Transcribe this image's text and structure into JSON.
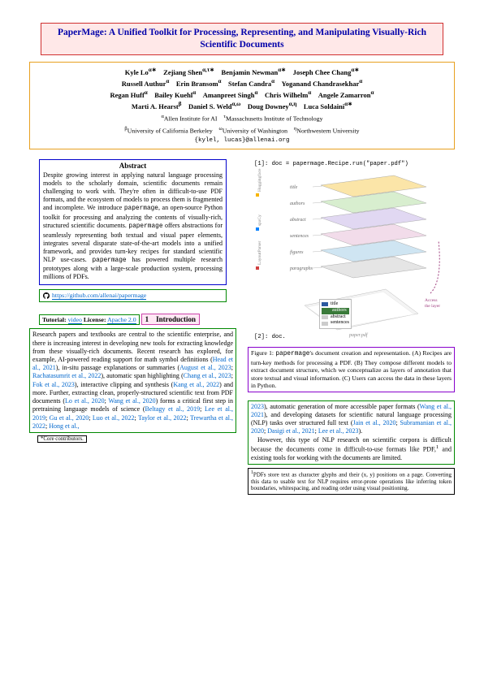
{
  "title": "PaperMage: A Unified Toolkit for Processing, Representing, and Manipulating Visually-Rich Scientific Documents",
  "authors": {
    "line1": "Kyle Lo<sup>α∗</sup> Zejiang Shen<sup>α,τ∗</sup> Benjamin Newman<sup>α∗</sup> Joseph Chee Chang<sup>α∗</sup>",
    "line2": "Russell Authur<sup>α</sup> Erin Bransom<sup>α</sup> Stefan Candra<sup>α</sup> Yoganand Chandrasekhar<sup>α</sup>",
    "line3": "Regan Huff<sup>α</sup> Bailey Kuehl<sup>α</sup> Amanpreet Singh<sup>α</sup> Chris Wilhelm<sup>α</sup> Angele Zamarron<sup>α</sup>",
    "line4": "Marti A. Hearst<sup>β</sup> Daniel S. Weld<sup>α,ω</sup> Doug Downey<sup>α,η</sup> Luca Soldaini<sup>α∗</sup>",
    "affil1": "<sup>α</sup>Allen Institute for AI <sup>τ</sup>Massachusetts Institute of Technology",
    "affil2": "<sup>β</sup>University of California Berkeley <sup>ω</sup>University of Washington <sup>η</sup>Northwestern University",
    "email": "{kylel, lucas}@allenai.org"
  },
  "abstract": {
    "heading": "Abstract",
    "text": "Despite growing interest in applying natural language processing models to the scholarly domain, scientific documents remain challenging to work with. They're often in difficult-to-use PDF formats, and the ecosystem of models to process them is fragmented and incomplete. We introduce <span class=\"mono\">papermage</span>, an open-source Python toolkit for processing and analyzing the contents of visually-rich, structured scientific documents. <span class=\"mono\">papermage</span> offers abstractions for seamlessly representing both textual and visual paper elements, integrates several disparate state-of-the-art models into a unified framework, and provides turn-key recipes for standard scientific NLP use-cases. <span class=\"mono\">papermage</span> has powered multiple research prototypes along with a large-scale production system, processing millions of PDFs."
  },
  "links": {
    "github_url": "https://github.com/allenai/papermage",
    "tutorial_label": "Tutorial:",
    "tutorial_link": "video",
    "license_label": "License:",
    "license_link": "Apache 2.0"
  },
  "section1": {
    "heading": "1 Introduction",
    "para1": "Research papers and textbooks are central to the scientific enterprise, and there is increasing interest in developing new tools for extracting knowledge from these visually-rich documents. Recent research has explored, for example, AI-powered reading support for math symbol definitions (<span class=\"cite\">Head et al., 2021</span>), in-situ passage explanations or summaries (<span class=\"cite\">August et al., 2023</span>; <span class=\"cite\">Rachatasumrit et al., 2022</span>), automatic span highlighting (<span class=\"cite\">Chang et al., 2023</span>; <span class=\"cite\">Fok et al., 2023</span>), interactive clipping and synthesis (<span class=\"cite\">Kang et al., 2022</span>) and more. Further, extracting clean, properly-structured scientific text from PDF documents (<span class=\"cite\">Lo et al., 2020</span>; <span class=\"cite\">Wang et al., 2020</span>) forms a critical first step in pretraining language models of science (<span class=\"cite\">Beltagy et al., 2019</span>; <span class=\"cite\">Lee et al., 2019</span>; <span class=\"cite\">Gu et al., 2020</span>; <span class=\"cite\">Luo et al., 2022</span>; <span class=\"cite\">Taylor et al., 2022</span>; <span class=\"cite\">Trewartha et al., 2022</span>; <span class=\"cite\">Hong et al.,</span>"
  },
  "figure1": {
    "code_top": "[1]: doc = papermage.Recipe.run(\"paper.pdf\")",
    "code_bottom": "[2]: doc.",
    "layers": [
      "title",
      "authors",
      "abstract",
      "sentences",
      "figures",
      "paragraphs"
    ],
    "layer_colors": [
      "#f7d060",
      "#b8e0a8",
      "#c8b8e8",
      "#e8c0d8",
      "#a8d0e8",
      "#d0d0d0"
    ],
    "legend": [
      {
        "label": "title",
        "color": "#2c5aa0"
      },
      {
        "label": "authors",
        "color": "#3a7a3a"
      },
      {
        "label": "abstract",
        "color": "#cccccc"
      },
      {
        "label": "sentences",
        "color": "#cccccc"
      }
    ],
    "access_label": "Access the layer",
    "caption": "Figure 1: <span class=\"mono\">papermage</span>'s document creation and representation. (A) Recipes are turn-key methods for processing a PDF. (B) They compose different models to extract document structure, which we conceptualize as layers of annotation that store textual and visual information. (C) Users can access the data in these layers in Python."
  },
  "col2_body": "<span class=\"cite\">2023</span>), automatic generation of more accessible paper formats (<span class=\"cite\">Wang et al., 2021</span>), and developing datasets for scientific natural language processing (NLP) tasks over structured full text (<span class=\"cite\">Jain et al., 2020</span>; <span class=\"cite\">Subramanian et al., 2020</span>; <span class=\"cite\">Dasigi et al., 2021</span>; <span class=\"cite\">Lee et al., 2023</span>).<br> However, this type of NLP research on scientific corpora is difficult because the documents come in difficult-to-use formats like PDF,<sup>1</sup> and existing tools for working with the documents are limited.",
  "footnote": "<sup>1</sup>PDFs store text as character glyphs and their (x, y) positions on a page. Converting this data to usable text for NLP requires error-prone operations like inferring token boundaries, whitespacing, and reading order using visual positioning.",
  "core": "*Core contributors.",
  "colors": {
    "title_border": "#d03030",
    "title_bg": "#ffe8e8",
    "title_text": "#0000aa",
    "authors_border": "#e8a020",
    "abstract_border": "#0000cc",
    "links_border": "#008800",
    "section_border": "#cc44aa",
    "section_bg": "#ffe8f4",
    "body_border": "#008800",
    "caption_border": "#8800cc",
    "link_color": "#0066cc"
  }
}
